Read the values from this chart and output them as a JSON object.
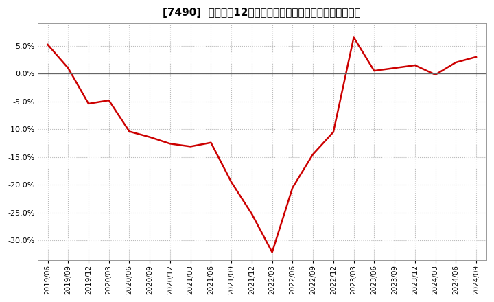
{
  "title": "[7490]  売上高の12か月移動合計の対前年同期増減率の推移",
  "line_color": "#cc0000",
  "background_color": "#ffffff",
  "plot_bg_color": "#ffffff",
  "grid_color": "#bbbbbb",
  "zero_line_color": "#666666",
  "ylim": [
    -0.335,
    0.09
  ],
  "yticks": [
    0.05,
    0.0,
    -0.05,
    -0.1,
    -0.15,
    -0.2,
    -0.25,
    -0.3
  ],
  "dates": [
    "2019/06",
    "2019/09",
    "2019/12",
    "2020/03",
    "2020/06",
    "2020/09",
    "2020/12",
    "2021/03",
    "2021/06",
    "2021/09",
    "2021/12",
    "2022/03",
    "2022/06",
    "2022/09",
    "2022/12",
    "2023/03",
    "2023/06",
    "2023/09",
    "2023/12",
    "2024/03",
    "2024/06",
    "2024/09"
  ],
  "values": [
    0.052,
    0.01,
    -0.054,
    -0.048,
    -0.104,
    -0.114,
    -0.126,
    -0.131,
    -0.124,
    -0.195,
    -0.252,
    -0.321,
    -0.205,
    -0.145,
    -0.105,
    0.065,
    0.005,
    0.01,
    0.015,
    -0.002,
    0.02,
    0.03
  ],
  "title_fontsize": 11,
  "tick_fontsize": 8,
  "xtick_fontsize": 7.5,
  "line_width": 1.8
}
